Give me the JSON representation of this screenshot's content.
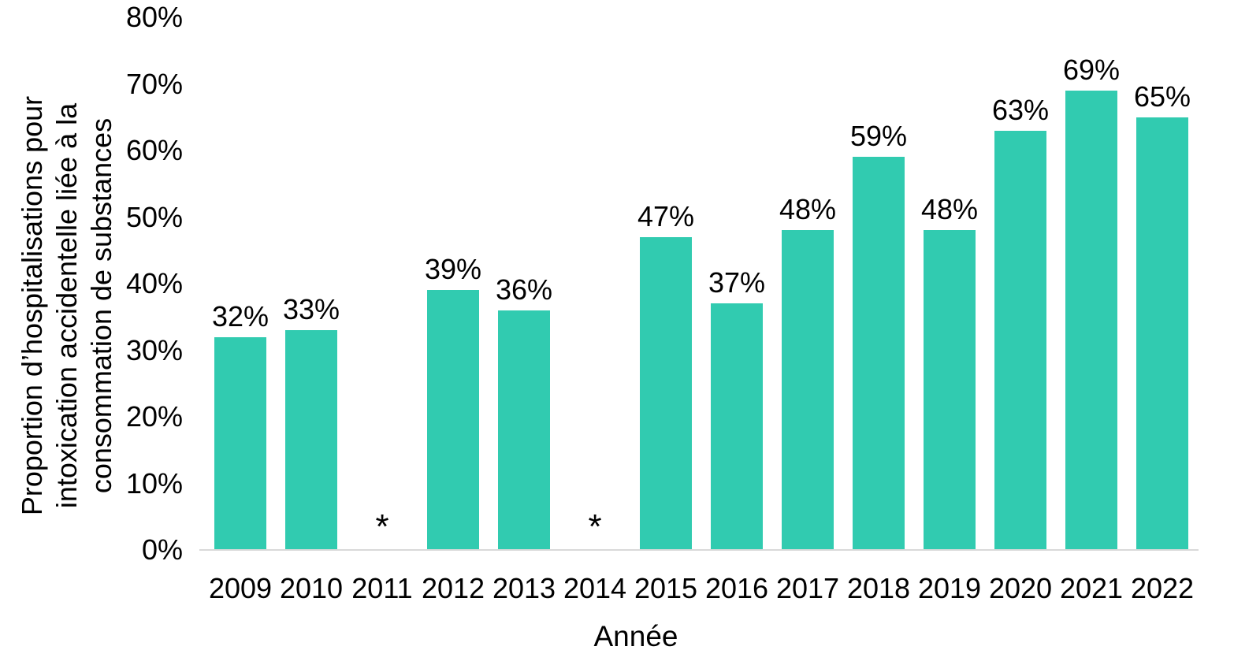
{
  "chart_data": {
    "type": "bar",
    "title": "",
    "xlabel": "Année",
    "ylabel": "Proportion d’hospitalisations pour intoxication accidentelle liée à la consommation de substances",
    "ylabel_lines": [
      "Proportion d’hospitalisations pour",
      "intoxication accidentelle liée à la",
      "consommation de substances"
    ],
    "categories": [
      "2009",
      "2010",
      "2011",
      "2012",
      "2013",
      "2014",
      "2015",
      "2016",
      "2017",
      "2018",
      "2019",
      "2020",
      "2021",
      "2022"
    ],
    "values": [
      32,
      33,
      null,
      39,
      36,
      null,
      47,
      37,
      48,
      59,
      48,
      63,
      69,
      65
    ],
    "bar_labels": [
      "32%",
      "33%",
      "*",
      "39%",
      "36%",
      "*",
      "47%",
      "37%",
      "48%",
      "59%",
      "48%",
      "63%",
      "69%",
      "65%"
    ],
    "suppressed_marker": "*",
    "suppressed_categories": [
      "2011",
      "2014"
    ],
    "y_ticks": [
      "0%",
      "10%",
      "20%",
      "30%",
      "40%",
      "50%",
      "60%",
      "70%",
      "80%"
    ],
    "ylim": [
      0,
      80
    ],
    "y_tick_step": 10,
    "grid": false,
    "legend_position": "none",
    "bar_color": "#31cbb0",
    "axis_line_color": "#d9d9d9",
    "text_color": "#000000",
    "background_color": "#ffffff"
  }
}
